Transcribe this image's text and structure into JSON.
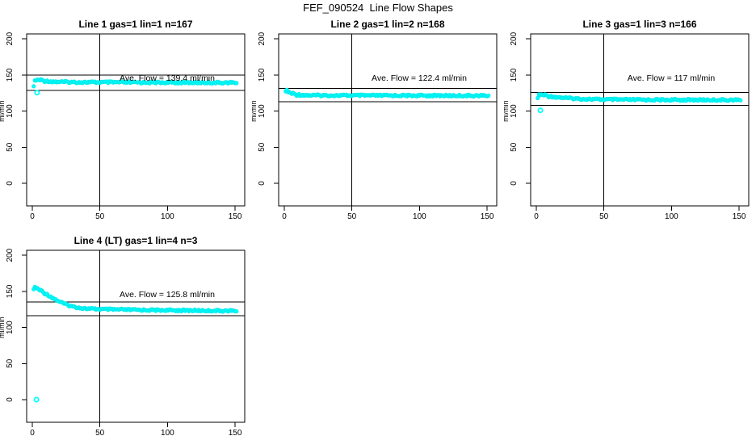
{
  "page": {
    "title": "FEF_090524  Line Flow Shapes",
    "background": "#ffffff"
  },
  "colors": {
    "points": "#00ffff",
    "points_edge": "#00e6e6",
    "axis": "#000000",
    "text": "#000000"
  },
  "axes": {
    "x_ticks": [
      0,
      50,
      100,
      150
    ],
    "y_ticks": [
      0,
      50,
      100,
      150,
      200
    ],
    "x_range": [
      0,
      150
    ],
    "y_range": [
      0,
      200
    ],
    "y_label": "ml/min",
    "vertical_marker_x": 50,
    "grid": false
  },
  "chart_data": [
    {
      "type": "scatter",
      "title": "Line 1 gas=1 lin=1 n=167",
      "n": 167,
      "ave_flow": 139.4,
      "ave_label": "Ave. Flow =  139.4  ml/min",
      "ref_lines": [
        149.9,
        128.9
      ],
      "series": [
        [
          1,
          136
        ],
        [
          2,
          141.5
        ],
        [
          3,
          143
        ],
        [
          5,
          143.3
        ],
        [
          8,
          142.3
        ],
        [
          12,
          141.3
        ],
        [
          18,
          140.6
        ],
        [
          30,
          140.1
        ],
        [
          50,
          139.9
        ],
        [
          80,
          139.7
        ],
        [
          120,
          139.5
        ],
        [
          151,
          139.4
        ]
      ],
      "outliers": [
        [
          3.5,
          125.5
        ]
      ]
    },
    {
      "type": "scatter",
      "title": "Line 2 gas=1 lin=2 n=168",
      "n": 168,
      "ave_flow": 122.4,
      "ave_label": "Ave. Flow =  122.4  ml/min",
      "ref_lines": [
        131.6,
        113.2
      ],
      "series": [
        [
          1,
          128.8
        ],
        [
          2,
          127.8
        ],
        [
          3,
          126.3
        ],
        [
          5,
          124.8
        ],
        [
          8,
          123.3
        ],
        [
          12,
          122.4
        ],
        [
          20,
          121.9
        ],
        [
          40,
          121.7
        ],
        [
          80,
          121.6
        ],
        [
          120,
          121.5
        ],
        [
          151,
          121.4
        ]
      ],
      "outliers": []
    },
    {
      "type": "scatter",
      "title": "Line 3 gas=1 lin=3 n=166",
      "n": 166,
      "ave_flow": 117,
      "ave_label": "Ave. Flow =  117  ml/min",
      "ref_lines": [
        125.8,
        108.2
      ],
      "series": [
        [
          1,
          119.5
        ],
        [
          2,
          121.8
        ],
        [
          4,
          122.8
        ],
        [
          7,
          121.8
        ],
        [
          11,
          120.3
        ],
        [
          16,
          119.2
        ],
        [
          24,
          117.9
        ],
        [
          35,
          116.8
        ],
        [
          50,
          116.1
        ],
        [
          70,
          115.8
        ],
        [
          100,
          115.6
        ],
        [
          130,
          115.5
        ],
        [
          151,
          115.4
        ]
      ],
      "outliers": [
        [
          3,
          101
        ]
      ]
    },
    {
      "type": "scatter",
      "title": "Line 4 (LT) gas=1 lin=4 n=3",
      "n": 3,
      "ave_flow": 125.8,
      "ave_label": "Ave. Flow =  125.8  ml/min",
      "ref_lines": [
        135.2,
        116.4
      ],
      "series": [
        [
          1,
          154.5
        ],
        [
          3,
          154.8
        ],
        [
          5,
          152.5
        ],
        [
          8,
          149
        ],
        [
          12,
          144.5
        ],
        [
          16,
          140
        ],
        [
          20,
          136
        ],
        [
          25,
          131.8
        ],
        [
          30,
          129
        ],
        [
          36,
          127
        ],
        [
          42,
          126
        ],
        [
          50,
          125.4
        ],
        [
          62,
          124.9
        ],
        [
          80,
          124.3
        ],
        [
          100,
          123.9
        ],
        [
          125,
          123.4
        ],
        [
          151,
          123
        ]
      ],
      "outliers": [
        [
          3,
          0
        ]
      ]
    }
  ]
}
